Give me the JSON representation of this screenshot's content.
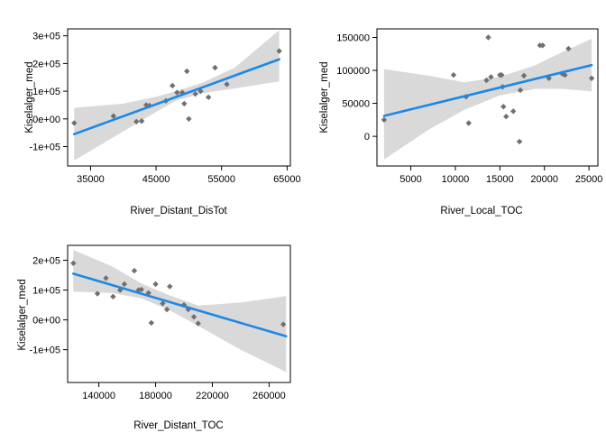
{
  "chart_data": [
    {
      "type": "scatter",
      "xlabel": "River_Distant_DisTot",
      "ylabel": "Kiselalger_med",
      "xlim": [
        31500,
        65500
      ],
      "ylim": [
        -170000,
        325000
      ],
      "xticks": [
        35000,
        45000,
        55000,
        65000
      ],
      "xtick_labels": [
        "35000",
        "45000",
        "55000",
        "65000"
      ],
      "yticks": [
        -100000,
        0,
        100000,
        200000,
        300000
      ],
      "ytick_labels": [
        "-1e+05",
        "0e+00",
        "1e+05",
        "2e+05",
        "3e+05"
      ],
      "points": [
        [
          32500,
          -15000
        ],
        [
          38500,
          10000
        ],
        [
          42000,
          -10000
        ],
        [
          42800,
          -8000
        ],
        [
          43500,
          50000
        ],
        [
          44000,
          48000
        ],
        [
          46500,
          65000
        ],
        [
          47500,
          120000
        ],
        [
          48200,
          95000
        ],
        [
          49000,
          95000
        ],
        [
          49300,
          55000
        ],
        [
          49700,
          172000
        ],
        [
          50000,
          0
        ],
        [
          51000,
          90000
        ],
        [
          51800,
          100000
        ],
        [
          53000,
          78000
        ],
        [
          54000,
          185000
        ],
        [
          55800,
          125000
        ],
        [
          63800,
          245000
        ]
      ],
      "fit_line": [
        [
          32500,
          -55000
        ],
        [
          63800,
          215000
        ]
      ],
      "ci_band": {
        "x": [
          32500,
          40000,
          45000,
          48000,
          52000,
          57000,
          63800
        ],
        "lower": [
          -150000,
          -45000,
          25000,
          65000,
          92000,
          110000,
          135000
        ],
        "upper": [
          40000,
          55000,
          80000,
          100000,
          130000,
          185000,
          320000
        ]
      }
    },
    {
      "type": "scatter",
      "xlabel": "River_Local_TOC",
      "ylabel": "Kiselalger_med",
      "xlim": [
        1200,
        26000
      ],
      "ylim": [
        -45000,
        163000
      ],
      "xticks": [
        5000,
        10000,
        15000,
        20000,
        25000
      ],
      "xtick_labels": [
        "5000",
        "10000",
        "15000",
        "20000",
        "25000"
      ],
      "yticks": [
        0,
        50000,
        100000,
        150000
      ],
      "ytick_labels": [
        "0",
        "50000",
        "100000",
        "150000"
      ],
      "points": [
        [
          2000,
          25000
        ],
        [
          9800,
          93000
        ],
        [
          11200,
          60000
        ],
        [
          11500,
          20000
        ],
        [
          13500,
          85000
        ],
        [
          13700,
          150000
        ],
        [
          14000,
          90000
        ],
        [
          15000,
          93000
        ],
        [
          15200,
          93000
        ],
        [
          15300,
          75000
        ],
        [
          15400,
          45000
        ],
        [
          15700,
          30000
        ],
        [
          16500,
          38000
        ],
        [
          17200,
          -8000
        ],
        [
          17300,
          70000
        ],
        [
          17700,
          92000
        ],
        [
          19500,
          138000
        ],
        [
          19800,
          138000
        ],
        [
          20500,
          88000
        ],
        [
          22000,
          95000
        ],
        [
          22300,
          93000
        ],
        [
          22700,
          133000
        ],
        [
          25300,
          88000
        ]
      ],
      "fit_line": [
        [
          2000,
          31000
        ],
        [
          25300,
          108000
        ]
      ],
      "ci_band": {
        "x": [
          2000,
          7000,
          11000,
          15000,
          19000,
          22000,
          25300
        ],
        "lower": [
          -35000,
          10000,
          40000,
          62000,
          72000,
          72000,
          68000
        ],
        "upper": [
          102000,
          92000,
          82000,
          90000,
          108000,
          128000,
          148000
        ]
      }
    },
    {
      "type": "scatter",
      "xlabel": "River_Distant_TOC",
      "ylabel": "Kiselalger_med",
      "xlim": [
        118000,
        275000
      ],
      "ylim": [
        -210000,
        250000
      ],
      "xticks": [
        140000,
        180000,
        220000,
        260000
      ],
      "xtick_labels": [
        "140000",
        "180000",
        "220000",
        "260000"
      ],
      "yticks": [
        -100000,
        0,
        100000,
        200000
      ],
      "ytick_labels": [
        "-1e+05",
        "0e+00",
        "1e+05",
        "2e+05"
      ],
      "points": [
        [
          122000,
          190000
        ],
        [
          139000,
          88000
        ],
        [
          145000,
          140000
        ],
        [
          150000,
          78000
        ],
        [
          155000,
          100000
        ],
        [
          158000,
          120000
        ],
        [
          165000,
          165000
        ],
        [
          168000,
          100000
        ],
        [
          170000,
          102000
        ],
        [
          175000,
          90000
        ],
        [
          177000,
          -10000
        ],
        [
          180000,
          120000
        ],
        [
          185000,
          55000
        ],
        [
          188000,
          35000
        ],
        [
          190000,
          112000
        ],
        [
          200000,
          50000
        ],
        [
          203000,
          35000
        ],
        [
          207000,
          10000
        ],
        [
          210000,
          -12000
        ],
        [
          270000,
          -15000
        ]
      ],
      "fit_line": [
        [
          122000,
          155000
        ],
        [
          272000,
          -55000
        ]
      ],
      "ci_band": {
        "x": [
          122000,
          150000,
          170000,
          190000,
          210000,
          240000,
          272000
        ],
        "lower": [
          95000,
          90000,
          72000,
          32000,
          -20000,
          -100000,
          -175000
        ],
        "upper": [
          235000,
          178000,
          122000,
          82000,
          48000,
          58000,
          80000
        ]
      }
    }
  ],
  "colors": {
    "point": "#707070",
    "fit_line": "#1e88e5",
    "ci_band": "#d9d9d9",
    "frame": "#000000"
  }
}
